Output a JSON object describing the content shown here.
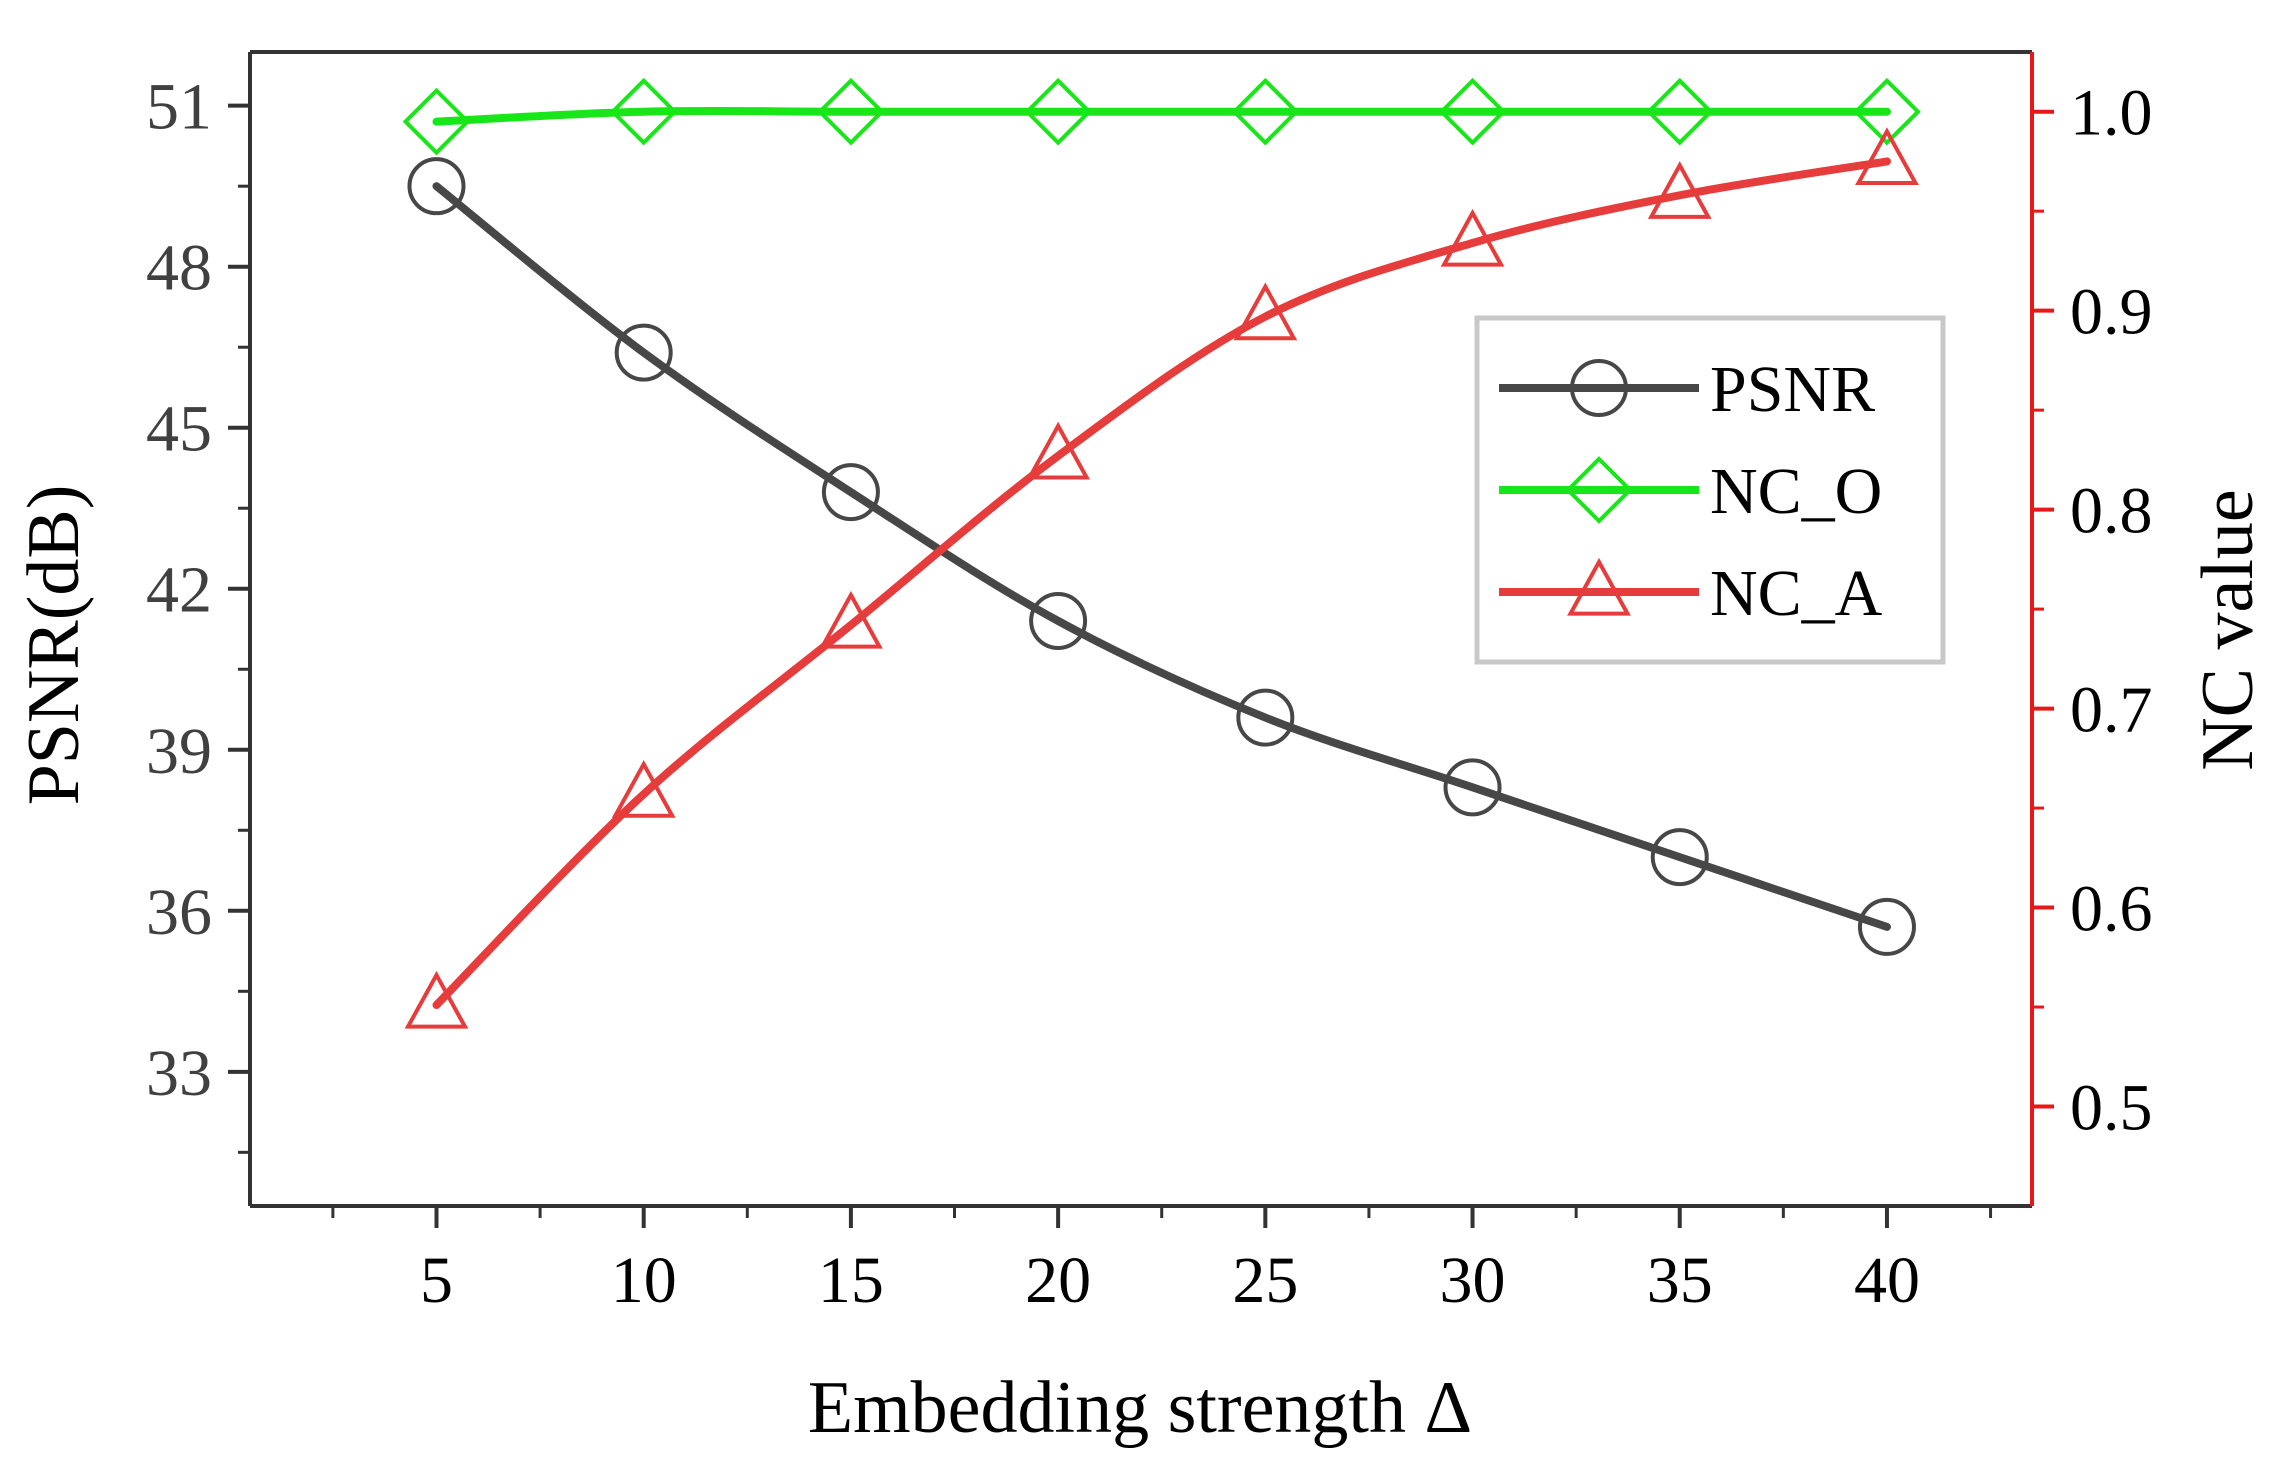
{
  "chart_data": {
    "type": "line",
    "title": "",
    "xlabel": "Embedding strength Δ",
    "ylabel": "PSNR(dB)",
    "y2label": "NC value",
    "xlim": [
      0.5,
      43.5
    ],
    "ylim": [
      30.5,
      52
    ],
    "y2lim": [
      0.45,
      1.03
    ],
    "xticks": [
      5,
      10,
      15,
      20,
      25,
      30,
      35,
      40
    ],
    "xtick_labels": [
      "5",
      "10",
      "15",
      "20",
      "25",
      "30",
      "35",
      "40"
    ],
    "yticks": [
      33,
      36,
      39,
      42,
      45,
      48,
      51
    ],
    "ytick_labels": [
      "33",
      "36",
      "39",
      "42",
      "45",
      "48",
      "51"
    ],
    "y2ticks": [
      0.5,
      0.6,
      0.7,
      0.8,
      0.9,
      1.0
    ],
    "y2tick_labels": [
      "0.5",
      "0.6",
      "0.7",
      "0.8",
      "0.9",
      "1.0"
    ],
    "x": [
      5,
      10,
      15,
      20,
      25,
      30,
      35,
      40
    ],
    "series": [
      {
        "name": "PSNR",
        "axis": "left",
        "marker": "circle",
        "color": "#474747",
        "values": [
          49.5,
          46.4,
          43.8,
          41.4,
          39.6,
          38.3,
          37.0,
          35.7
        ]
      },
      {
        "name": "NC_O",
        "axis": "right",
        "marker": "diamond",
        "color": "#19e619",
        "values": [
          0.995,
          1.0,
          1.0,
          1.0,
          1.0,
          1.0,
          1.0,
          1.0
        ]
      },
      {
        "name": "NC_A",
        "axis": "right",
        "marker": "triangle",
        "color": "#e63c3c",
        "values": [
          0.551,
          0.657,
          0.742,
          0.827,
          0.897,
          0.934,
          0.958,
          0.975
        ]
      }
    ],
    "legend": {
      "position": "upper-right-inside",
      "entries": [
        "PSNR",
        "NC_O",
        "NC_A"
      ]
    },
    "right_axis_color": "#e61919",
    "grid": false
  }
}
